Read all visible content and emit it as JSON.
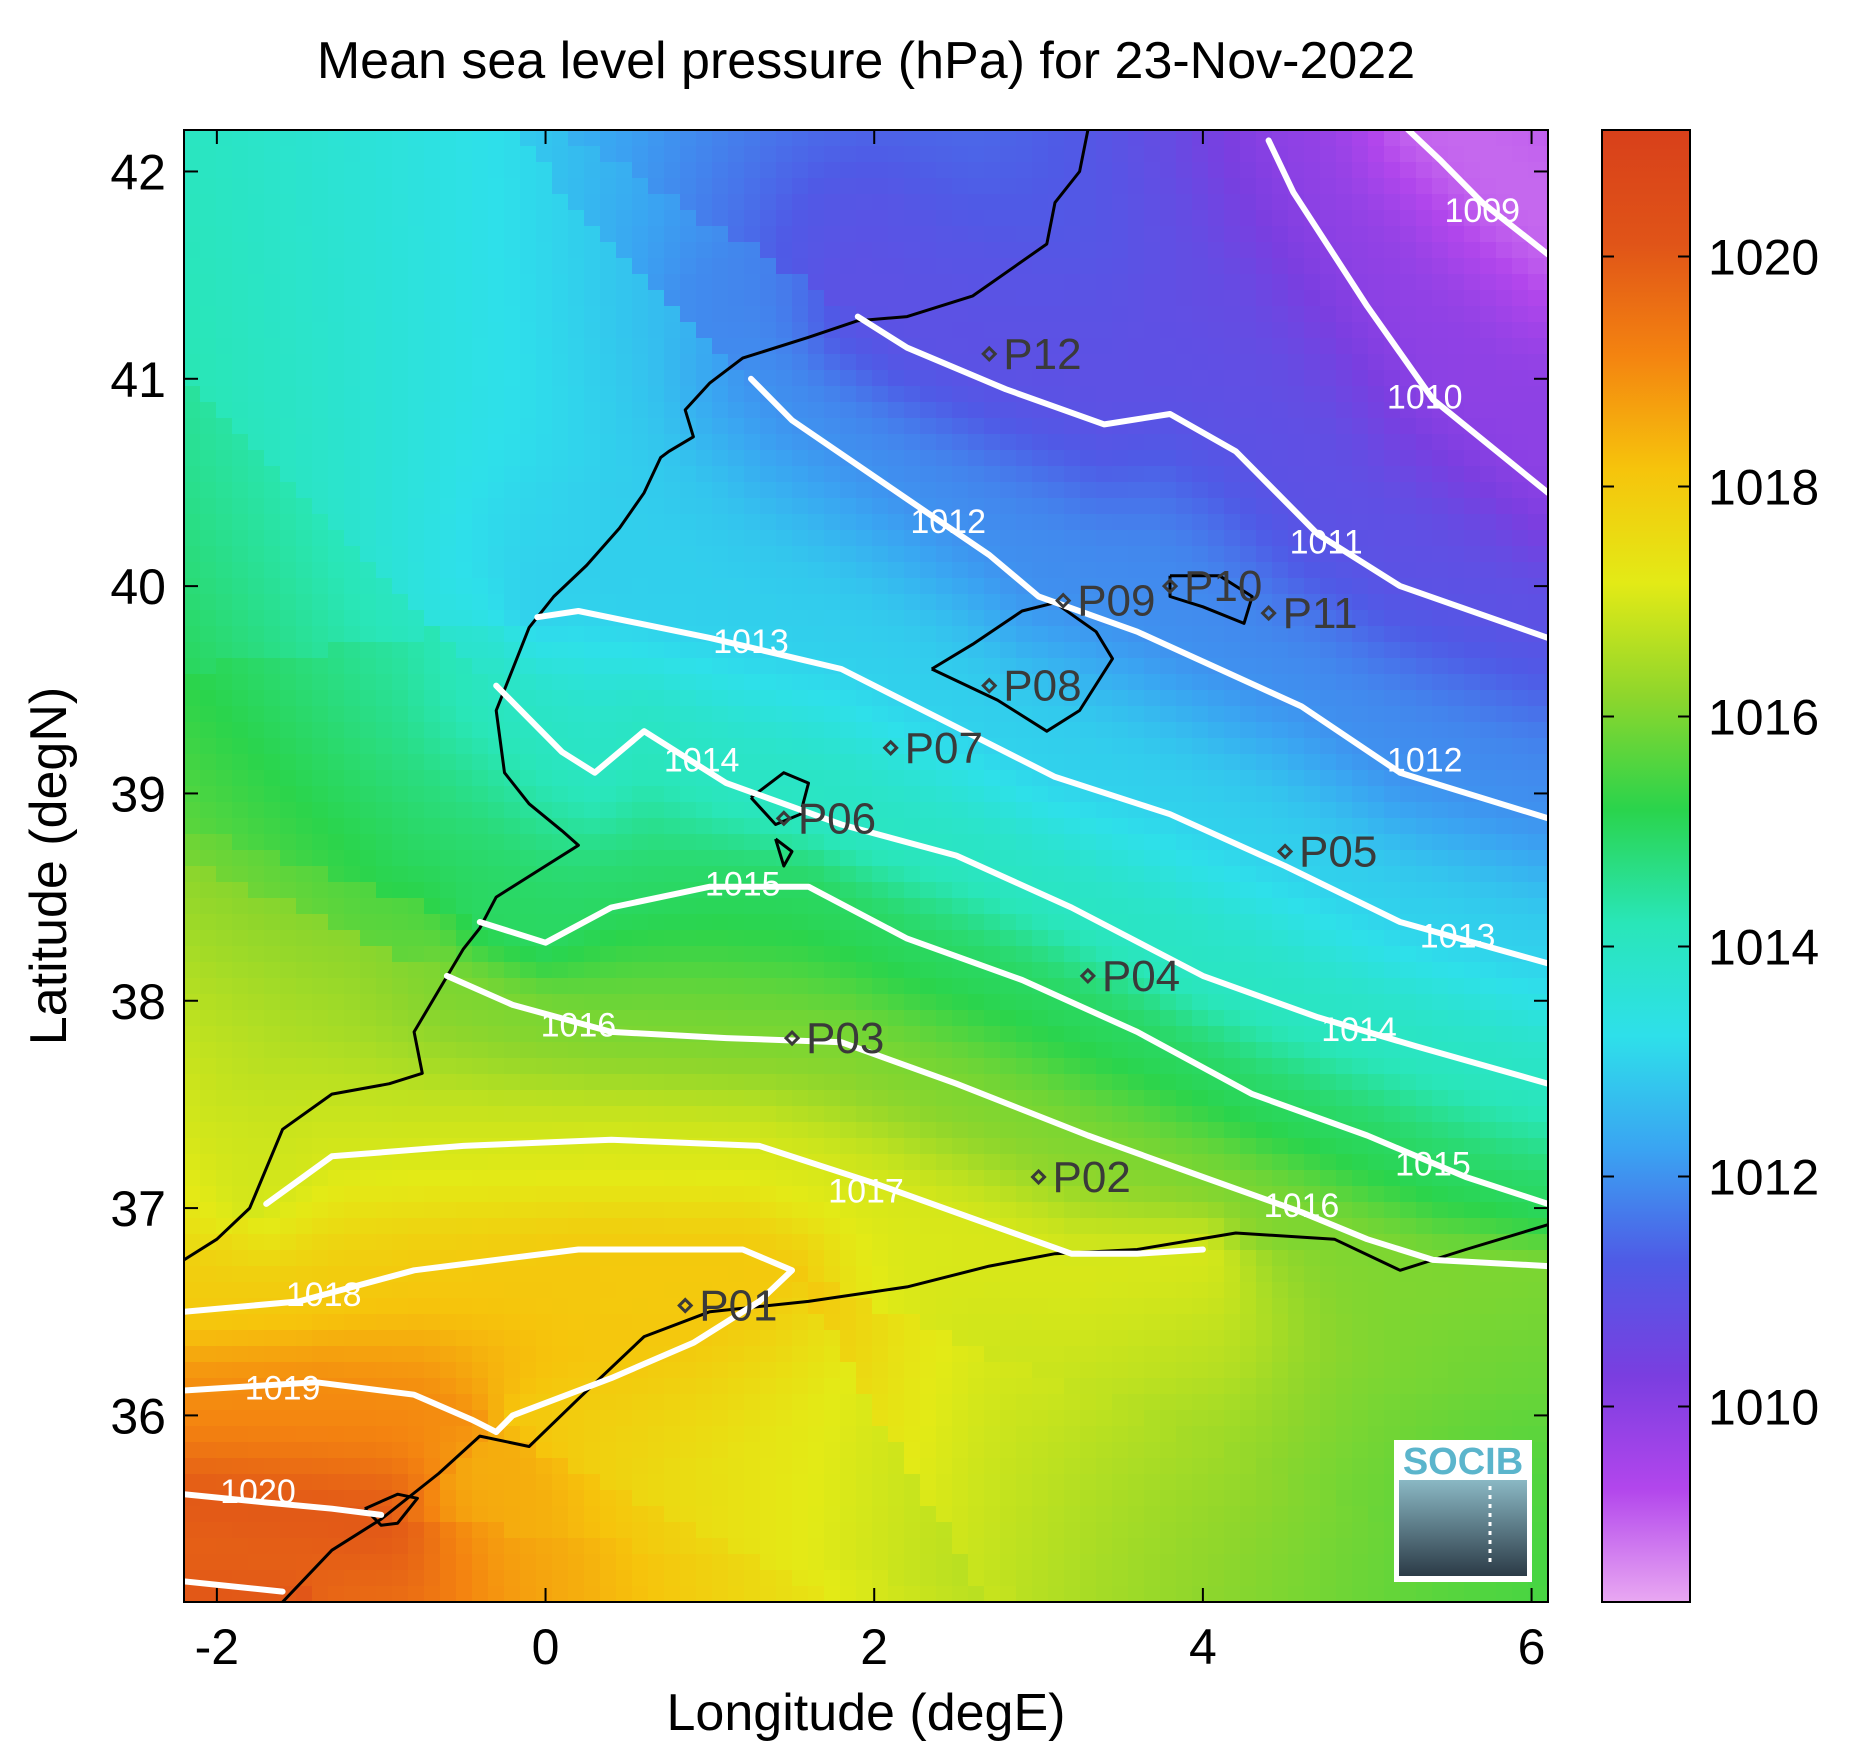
{
  "title": "Mean sea level pressure (hPa) for 23-Nov-2022",
  "xlabel": "Longitude (degE)",
  "ylabel": "Latitude (degN)",
  "xlim": [
    -2.2,
    6.1
  ],
  "ylim": [
    35.1,
    42.2
  ],
  "xticks": [
    -2,
    0,
    2,
    4,
    6
  ],
  "xtick_labels": [
    "-2",
    "0",
    "2",
    "4",
    "6"
  ],
  "yticks": [
    36,
    37,
    38,
    39,
    40,
    41,
    42
  ],
  "ytick_labels": [
    "36",
    "37",
    "38",
    "39",
    "40",
    "41",
    "42"
  ],
  "colorbar": {
    "range": [
      1008.3,
      1021.1
    ],
    "ticks": [
      1010,
      1012,
      1014,
      1016,
      1018,
      1020
    ],
    "tick_labels": [
      "1010",
      "1012",
      "1014",
      "1016",
      "1018",
      "1020"
    ],
    "colormap": [
      "#e9a8f2",
      "#b246ec",
      "#7a3ee0",
      "#4f5ae6",
      "#3aa4f2",
      "#2ee0ea",
      "#29e6b8",
      "#2ad44c",
      "#8ed62c",
      "#e3ea16",
      "#f6c40c",
      "#f48410",
      "#e05418",
      "#d8401a"
    ]
  },
  "chart_data": {
    "type": "heatmap",
    "variable": "Mean sea level pressure (hPa)",
    "date": "23-Nov-2022",
    "contour_levels": [
      1009,
      1010,
      1011,
      1012,
      1013,
      1014,
      1015,
      1016,
      1017,
      1018,
      1019,
      1020
    ],
    "contour_labels": [
      {
        "text": "1009",
        "lon": 5.7,
        "lat": 41.8
      },
      {
        "text": "1010",
        "lon": 5.35,
        "lat": 40.9
      },
      {
        "text": "1011",
        "lon": 4.75,
        "lat": 40.2
      },
      {
        "text": "1012",
        "lon": 2.45,
        "lat": 40.3
      },
      {
        "text": "1012",
        "lon": 5.35,
        "lat": 39.15
      },
      {
        "text": "1013",
        "lon": 1.25,
        "lat": 39.72
      },
      {
        "text": "1013",
        "lon": 5.55,
        "lat": 38.3
      },
      {
        "text": "1014",
        "lon": 0.95,
        "lat": 39.15
      },
      {
        "text": "1014",
        "lon": 4.95,
        "lat": 37.85
      },
      {
        "text": "1015",
        "lon": 1.2,
        "lat": 38.55
      },
      {
        "text": "1015",
        "lon": 5.4,
        "lat": 37.2
      },
      {
        "text": "1016",
        "lon": 0.2,
        "lat": 37.87
      },
      {
        "text": "1016",
        "lon": 4.6,
        "lat": 37.0
      },
      {
        "text": "1017",
        "lon": 1.95,
        "lat": 37.07
      },
      {
        "text": "1018",
        "lon": -1.35,
        "lat": 36.57
      },
      {
        "text": "1019",
        "lon": -1.6,
        "lat": 36.12
      },
      {
        "text": "1020",
        "lon": -1.75,
        "lat": 35.62
      }
    ],
    "contours": [
      {
        "level": 1009,
        "points": [
          [
            5.25,
            42.2
          ],
          [
            5.45,
            42.05
          ],
          [
            5.7,
            41.85
          ],
          [
            6.1,
            41.6
          ]
        ]
      },
      {
        "level": 1010,
        "points": [
          [
            4.4,
            42.15
          ],
          [
            4.55,
            41.9
          ],
          [
            5.0,
            41.35
          ],
          [
            5.4,
            40.9
          ],
          [
            6.1,
            40.45
          ]
        ]
      },
      {
        "level": 1011,
        "points": [
          [
            1.9,
            41.3
          ],
          [
            2.2,
            41.15
          ],
          [
            2.8,
            40.95
          ],
          [
            3.4,
            40.78
          ],
          [
            3.8,
            40.83
          ],
          [
            4.2,
            40.65
          ],
          [
            4.7,
            40.25
          ],
          [
            5.2,
            40.0
          ],
          [
            6.1,
            39.75
          ]
        ]
      },
      {
        "level": 1012,
        "points": [
          [
            1.25,
            41.0
          ],
          [
            1.5,
            40.8
          ],
          [
            2.2,
            40.42
          ],
          [
            2.7,
            40.15
          ],
          [
            3.0,
            39.95
          ],
          [
            3.6,
            39.78
          ],
          [
            4.1,
            39.6
          ],
          [
            4.6,
            39.42
          ],
          [
            5.2,
            39.1
          ],
          [
            6.1,
            38.88
          ]
        ]
      },
      {
        "level": 1013,
        "points": [
          [
            -0.05,
            39.85
          ],
          [
            0.2,
            39.88
          ],
          [
            1.0,
            39.75
          ],
          [
            1.8,
            39.6
          ],
          [
            2.5,
            39.32
          ],
          [
            3.1,
            39.08
          ],
          [
            3.8,
            38.9
          ],
          [
            4.5,
            38.65
          ],
          [
            5.2,
            38.38
          ],
          [
            6.1,
            38.18
          ]
        ]
      },
      {
        "level": 1014,
        "points": [
          [
            -0.3,
            39.52
          ],
          [
            0.1,
            39.2
          ],
          [
            0.3,
            39.1
          ],
          [
            0.6,
            39.3
          ],
          [
            1.1,
            39.05
          ],
          [
            1.8,
            38.85
          ],
          [
            2.5,
            38.7
          ],
          [
            3.2,
            38.45
          ],
          [
            4.0,
            38.12
          ],
          [
            4.7,
            37.92
          ],
          [
            5.3,
            37.78
          ],
          [
            6.1,
            37.6
          ]
        ]
      },
      {
        "level": 1015,
        "points": [
          [
            -0.4,
            38.38
          ],
          [
            0.0,
            38.28
          ],
          [
            0.4,
            38.45
          ],
          [
            1.0,
            38.55
          ],
          [
            1.6,
            38.55
          ],
          [
            2.2,
            38.3
          ],
          [
            2.9,
            38.1
          ],
          [
            3.6,
            37.85
          ],
          [
            4.3,
            37.55
          ],
          [
            5.0,
            37.35
          ],
          [
            5.6,
            37.15
          ],
          [
            6.1,
            37.02
          ]
        ]
      },
      {
        "level": 1016,
        "points": [
          [
            -0.6,
            38.12
          ],
          [
            -0.2,
            37.98
          ],
          [
            0.4,
            37.85
          ],
          [
            1.1,
            37.82
          ],
          [
            1.8,
            37.8
          ],
          [
            2.5,
            37.6
          ],
          [
            3.3,
            37.35
          ],
          [
            4.0,
            37.15
          ],
          [
            4.6,
            36.98
          ],
          [
            5.0,
            36.85
          ],
          [
            5.4,
            36.75
          ],
          [
            6.1,
            36.72
          ]
        ]
      },
      {
        "level": 1017,
        "points": [
          [
            -1.7,
            37.02
          ],
          [
            -1.3,
            37.25
          ],
          [
            -0.5,
            37.3
          ],
          [
            0.4,
            37.33
          ],
          [
            1.3,
            37.3
          ],
          [
            2.0,
            37.12
          ],
          [
            2.6,
            36.95
          ],
          [
            3.2,
            36.78
          ],
          [
            3.6,
            36.78
          ],
          [
            4.0,
            36.8
          ]
        ]
      },
      {
        "level": 1018,
        "points": [
          [
            -2.2,
            36.5
          ],
          [
            -1.5,
            36.55
          ],
          [
            -0.8,
            36.7
          ],
          [
            0.2,
            36.8
          ],
          [
            1.2,
            36.8
          ],
          [
            1.5,
            36.7
          ],
          [
            1.3,
            36.55
          ],
          [
            0.9,
            36.35
          ],
          [
            0.4,
            36.18
          ],
          [
            -0.2,
            36.0
          ],
          [
            -0.3,
            35.92
          ]
        ]
      },
      {
        "level": 1019,
        "points": [
          [
            -2.2,
            36.12
          ],
          [
            -1.4,
            36.16
          ],
          [
            -0.8,
            36.1
          ],
          [
            -0.45,
            35.98
          ],
          [
            -0.3,
            35.92
          ]
        ]
      },
      {
        "level": 1020,
        "points": [
          [
            -2.2,
            35.62
          ],
          [
            -1.7,
            35.58
          ],
          [
            -1.3,
            35.55
          ],
          [
            -1.0,
            35.52
          ]
        ]
      },
      {
        "level": 1020,
        "points": [
          [
            -2.2,
            35.2
          ],
          [
            -1.6,
            35.15
          ]
        ]
      }
    ],
    "stations": [
      {
        "name": "P01",
        "lon": 0.85,
        "lat": 36.53
      },
      {
        "name": "P02",
        "lon": 3.0,
        "lat": 37.15
      },
      {
        "name": "P03",
        "lon": 1.5,
        "lat": 37.82
      },
      {
        "name": "P04",
        "lon": 3.3,
        "lat": 38.12
      },
      {
        "name": "P05",
        "lon": 4.5,
        "lat": 38.72
      },
      {
        "name": "P06",
        "lon": 1.45,
        "lat": 38.88
      },
      {
        "name": "P07",
        "lon": 2.1,
        "lat": 39.22
      },
      {
        "name": "P08",
        "lon": 2.7,
        "lat": 39.52
      },
      {
        "name": "P09",
        "lon": 3.15,
        "lat": 39.93
      },
      {
        "name": "P10",
        "lon": 3.8,
        "lat": 40.0
      },
      {
        "name": "P11",
        "lon": 4.4,
        "lat": 39.87
      },
      {
        "name": "P12",
        "lon": 2.7,
        "lat": 41.12
      }
    ],
    "coastline": [
      [
        [
          3.3,
          42.2
        ],
        [
          3.25,
          42.0
        ],
        [
          3.1,
          41.85
        ],
        [
          3.05,
          41.65
        ],
        [
          2.6,
          41.4
        ],
        [
          2.2,
          41.3
        ],
        [
          1.9,
          41.28
        ],
        [
          1.6,
          41.2
        ],
        [
          1.2,
          41.1
        ],
        [
          1.0,
          40.98
        ],
        [
          0.85,
          40.85
        ],
        [
          0.9,
          40.72
        ],
        [
          0.75,
          40.65
        ],
        [
          0.7,
          40.62
        ],
        [
          0.6,
          40.45
        ],
        [
          0.45,
          40.28
        ],
        [
          0.25,
          40.1
        ],
        [
          0.05,
          39.95
        ],
        [
          -0.1,
          39.8
        ],
        [
          -0.2,
          39.6
        ],
        [
          -0.3,
          39.4
        ],
        [
          -0.25,
          39.1
        ],
        [
          -0.1,
          38.95
        ],
        [
          0.1,
          38.82
        ],
        [
          0.2,
          38.75
        ],
        [
          0.0,
          38.65
        ],
        [
          -0.3,
          38.5
        ],
        [
          -0.4,
          38.35
        ],
        [
          -0.5,
          38.25
        ],
        [
          -0.65,
          38.05
        ],
        [
          -0.8,
          37.85
        ],
        [
          -0.75,
          37.65
        ],
        [
          -0.95,
          37.6
        ],
        [
          -1.3,
          37.55
        ],
        [
          -1.6,
          37.38
        ],
        [
          -1.8,
          37.0
        ],
        [
          -2.0,
          36.85
        ],
        [
          -2.2,
          36.75
        ]
      ],
      [
        [
          -1.6,
          35.1
        ],
        [
          -1.3,
          35.35
        ],
        [
          -1.0,
          35.5
        ],
        [
          -0.65,
          35.72
        ],
        [
          -0.4,
          35.9
        ],
        [
          -0.1,
          35.85
        ],
        [
          0.2,
          36.08
        ],
        [
          0.6,
          36.38
        ],
        [
          1.0,
          36.5
        ],
        [
          1.6,
          36.55
        ],
        [
          2.2,
          36.62
        ],
        [
          2.7,
          36.72
        ],
        [
          3.1,
          36.78
        ],
        [
          3.6,
          36.8
        ],
        [
          4.2,
          36.88
        ],
        [
          4.8,
          36.85
        ],
        [
          5.2,
          36.7
        ],
        [
          5.6,
          36.8
        ],
        [
          6.1,
          36.92
        ]
      ],
      [
        [
          -1.1,
          35.55
        ],
        [
          -1.0,
          35.47
        ],
        [
          -0.9,
          35.48
        ],
        [
          -0.78,
          35.6
        ],
        [
          -0.9,
          35.62
        ],
        [
          -1.1,
          35.55
        ]
      ],
      [
        [
          2.35,
          39.6
        ],
        [
          2.6,
          39.72
        ],
        [
          2.9,
          39.88
        ],
        [
          3.1,
          39.92
        ],
        [
          3.35,
          39.78
        ],
        [
          3.45,
          39.65
        ],
        [
          3.25,
          39.4
        ],
        [
          3.05,
          39.3
        ],
        [
          2.75,
          39.45
        ],
        [
          2.35,
          39.6
        ]
      ],
      [
        [
          3.8,
          40.05
        ],
        [
          4.1,
          40.05
        ],
        [
          4.3,
          39.95
        ],
        [
          4.25,
          39.82
        ],
        [
          4.0,
          39.9
        ],
        [
          3.8,
          39.95
        ],
        [
          3.8,
          40.05
        ]
      ],
      [
        [
          1.25,
          38.98
        ],
        [
          1.45,
          39.1
        ],
        [
          1.6,
          39.05
        ],
        [
          1.55,
          38.9
        ],
        [
          1.4,
          38.85
        ],
        [
          1.25,
          38.98
        ]
      ],
      [
        [
          1.4,
          38.78
        ],
        [
          1.5,
          38.72
        ],
        [
          1.45,
          38.65
        ],
        [
          1.4,
          38.78
        ]
      ]
    ]
  },
  "logo": {
    "text": "SOCIB"
  }
}
